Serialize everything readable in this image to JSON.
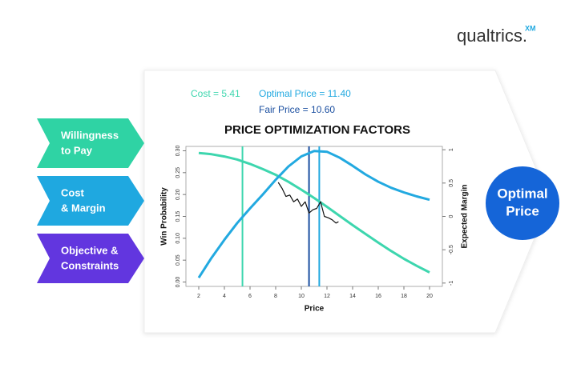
{
  "logo": {
    "text": "qualtrics.",
    "sup": "XM"
  },
  "steps": [
    {
      "lines": [
        "Willingness",
        "to Pay"
      ],
      "color": "#2fd3a4"
    },
    {
      "lines": [
        "Cost",
        "& Margin"
      ],
      "color": "#1fa8e0"
    },
    {
      "lines": [
        "Objective &",
        "Constraints"
      ],
      "color": "#6236df"
    }
  ],
  "result": {
    "lines": [
      "Optimal",
      "Price"
    ],
    "color": "#1565d8"
  },
  "chart_data": {
    "type": "line",
    "title": "PRICE OPTIMIZATION FACTORS",
    "x_label": "Price",
    "y_label": "Win Probability",
    "y2_label": "Expected Margin",
    "xlim": [
      1,
      21
    ],
    "xticks": [
      2,
      4,
      6,
      8,
      10,
      12,
      14,
      16,
      18,
      20
    ],
    "ylim": [
      -0.01,
      0.31
    ],
    "yticks": [
      {
        "value": 0,
        "label": "0.00"
      },
      {
        "value": 0.05,
        "label": "0.05"
      },
      {
        "value": 0.1,
        "label": "0.10"
      },
      {
        "value": 0.15,
        "label": "0.15"
      },
      {
        "value": 0.2,
        "label": "0.20"
      },
      {
        "value": 0.25,
        "label": "0.25"
      },
      {
        "value": 0.3,
        "label": "0.30"
      }
    ],
    "y2lim": [
      -1.05,
      1.05
    ],
    "y2ticks": [
      -1,
      -0.5,
      0,
      0.5,
      1
    ],
    "series": [
      {
        "color": "#3dd6ae",
        "axis": "y",
        "x": [
          2,
          3,
          4,
          5,
          6,
          7,
          8,
          9,
          10,
          11,
          12,
          13,
          14,
          15,
          16,
          17,
          18,
          19,
          20
        ],
        "values": [
          0.295,
          0.292,
          0.287,
          0.28,
          0.27,
          0.258,
          0.245,
          0.229,
          0.211,
          0.192,
          0.172,
          0.151,
          0.13,
          0.11,
          0.09,
          0.071,
          0.053,
          0.037,
          0.022
        ]
      },
      {
        "color": "#22a9e0",
        "axis": "y2",
        "x": [
          2,
          3,
          4,
          5,
          6,
          7,
          8,
          9,
          10,
          11,
          12,
          13,
          14,
          15,
          16,
          17,
          18,
          19,
          20
        ],
        "values": [
          -0.92,
          -0.62,
          -0.35,
          -0.1,
          0.12,
          0.33,
          0.55,
          0.75,
          0.9,
          0.98,
          0.97,
          0.88,
          0.76,
          0.63,
          0.52,
          0.43,
          0.36,
          0.3,
          0.25
        ]
      },
      {
        "color": "#111111",
        "axis": "y2",
        "x": [
          8.2,
          8.5,
          8.8,
          9.1,
          9.4,
          9.7,
          10,
          10.3,
          10.6,
          10.9,
          11.2,
          11.5,
          11.8,
          12.1,
          12.4,
          12.7,
          12.9
        ],
        "values": [
          0.51,
          0.42,
          0.3,
          0.32,
          0.22,
          0.26,
          0.15,
          0.22,
          0.05,
          0.1,
          0.12,
          0.22,
          0.0,
          -0.02,
          -0.05,
          -0.1,
          -0.08
        ]
      }
    ],
    "vlines": [
      {
        "label": "Cost = 5.41",
        "value": 5.41,
        "color": "#3dd6ae"
      },
      {
        "label": "Optimal Price = 11.40",
        "value": 11.4,
        "color": "#22a9e0"
      },
      {
        "label": "Fair Price = 10.60",
        "value": 10.6,
        "color": "#1b4fa0"
      }
    ]
  }
}
